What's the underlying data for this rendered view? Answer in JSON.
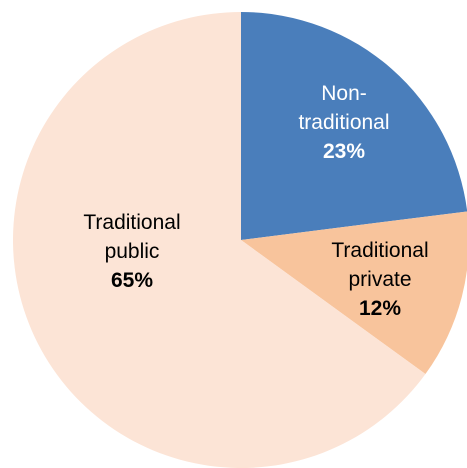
{
  "chart_data": {
    "type": "pie",
    "slices": [
      {
        "label_lines": [
          "Non-",
          "traditional"
        ],
        "value": 23,
        "percent_label": "23%",
        "color": "#4a7ebb",
        "label_color": "#ffffff"
      },
      {
        "label_lines": [
          "Traditional",
          "private"
        ],
        "value": 12,
        "percent_label": "12%",
        "color": "#f8c49c",
        "label_color": "#000000"
      },
      {
        "label_lines": [
          "Traditional",
          "public"
        ],
        "value": 65,
        "percent_label": "65%",
        "color": "#fce4d6",
        "label_color": "#000000"
      }
    ],
    "start_angle_deg": 0,
    "direction": "clockwise",
    "legend": "none"
  }
}
